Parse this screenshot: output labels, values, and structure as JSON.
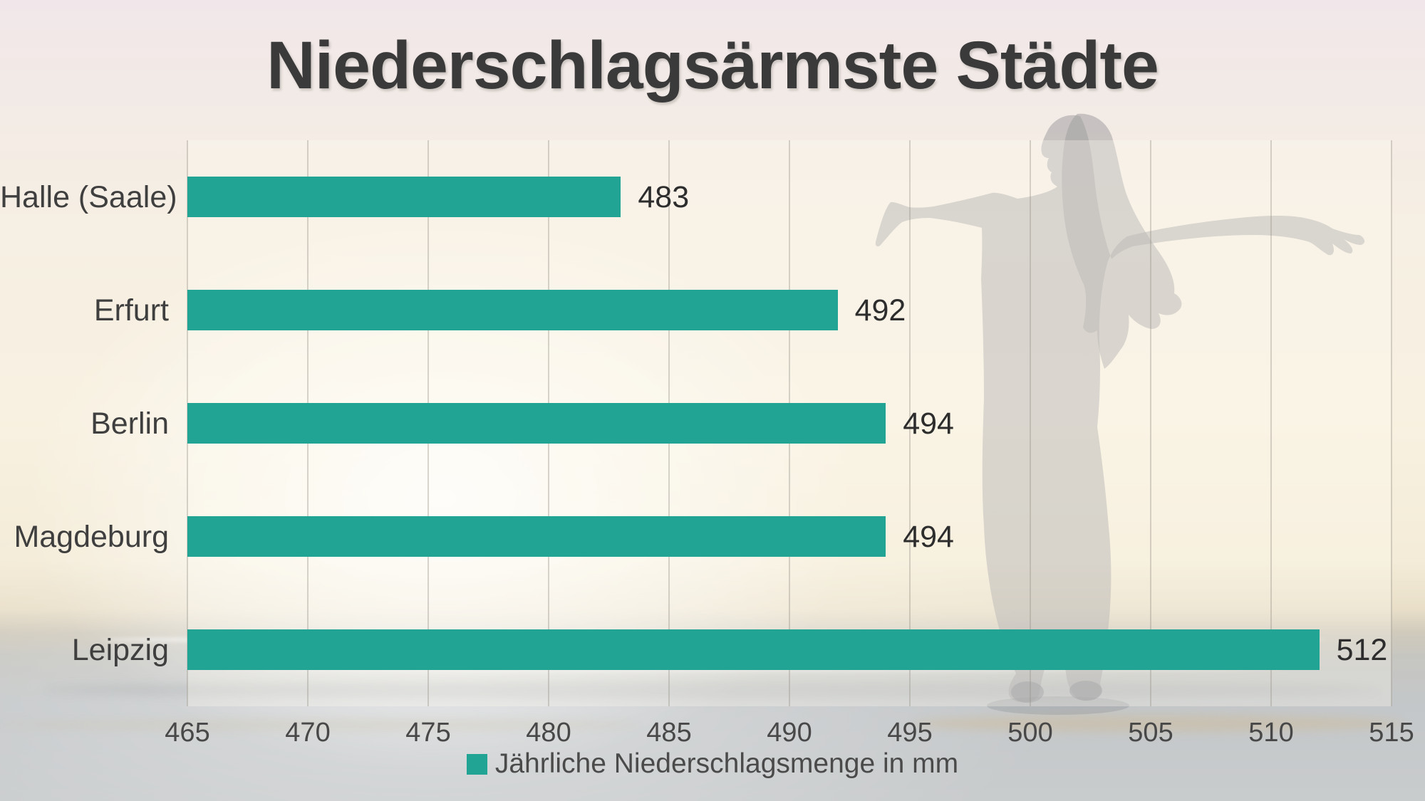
{
  "title": "Niederschlagsärmste Städte",
  "legend": {
    "label": "Jährliche Niederschlagsmenge in mm",
    "swatch_color": "#21a493"
  },
  "chart_data": {
    "type": "bar",
    "orientation": "horizontal",
    "title": "Niederschlagsärmste Städte",
    "categories": [
      "Halle (Saale)",
      "Erfurt",
      "Berlin",
      "Magdeburg",
      "Leipzig"
    ],
    "values": [
      483,
      492,
      494,
      494,
      512
    ],
    "series_name": "Jährliche Niederschlagsmenge in mm",
    "xlim": [
      465,
      515
    ],
    "xticks": [
      465,
      470,
      475,
      480,
      485,
      490,
      495,
      500,
      505,
      510,
      515
    ],
    "xlabel": "",
    "ylabel": "",
    "grid": true,
    "legend_position": "bottom",
    "bar_color": "#21a493",
    "value_labels_shown": true
  },
  "background": {
    "description_colors": {
      "sky_pink_top": "#f1e7ea",
      "sky_cream": "#f8f1e1",
      "sea_gray": "#c6c9cb",
      "sand": "#cebc9c"
    }
  }
}
